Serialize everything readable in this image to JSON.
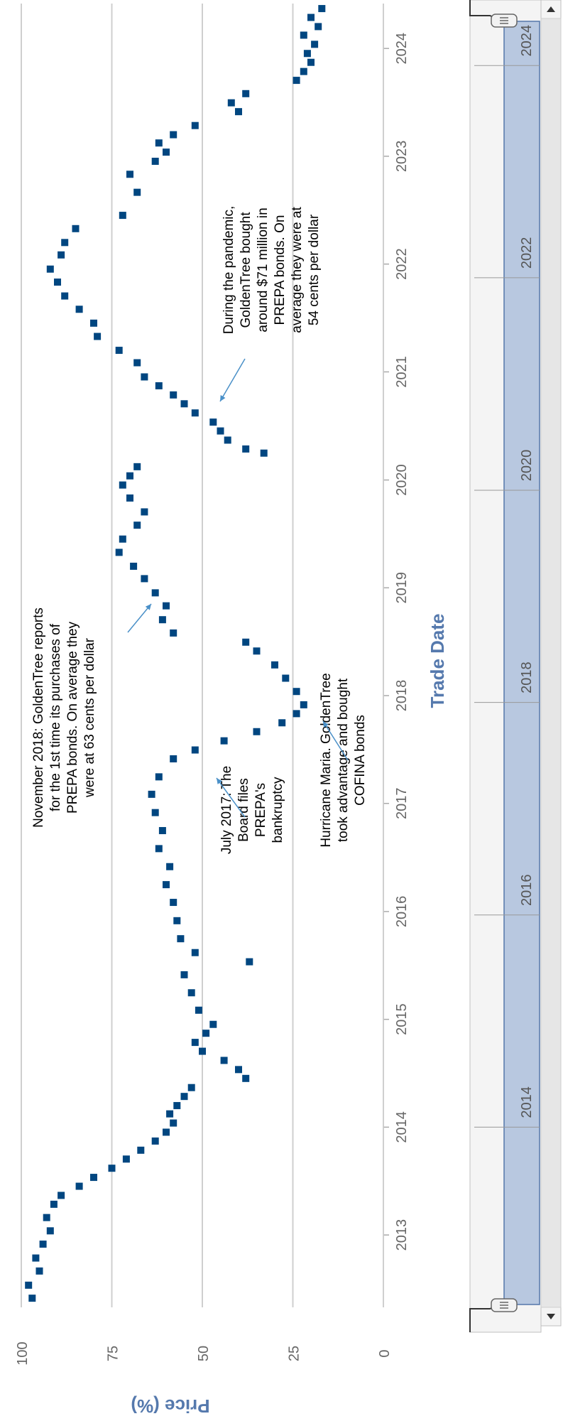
{
  "chart_data": {
    "type": "scatter",
    "orientation": "rotated-90-clockwise",
    "xlabel": "Trade Date",
    "ylabel": "Price (%)",
    "x_ticks": [
      "2013",
      "2014",
      "2015",
      "2016",
      "2017",
      "2018",
      "2019",
      "2020",
      "2021",
      "2022",
      "2023",
      "2024"
    ],
    "y_ticks": [
      "0",
      "25",
      "50",
      "75",
      "100"
    ],
    "ylim": [
      0,
      100
    ],
    "xlim": [
      "2012-05-01",
      "2024-06-01"
    ],
    "grid": true,
    "marker_color": "#004680",
    "series": [
      {
        "points": [
          {
            "x": "2012-06-01",
            "y": 97
          },
          {
            "x": "2012-07-15",
            "y": 98
          },
          {
            "x": "2012-09-01",
            "y": 95
          },
          {
            "x": "2012-10-15",
            "y": 96
          },
          {
            "x": "2012-12-01",
            "y": 94
          },
          {
            "x": "2013-01-15",
            "y": 92
          },
          {
            "x": "2013-03-01",
            "y": 93
          },
          {
            "x": "2013-04-15",
            "y": 91
          },
          {
            "x": "2013-05-15",
            "y": 89
          },
          {
            "x": "2013-06-15",
            "y": 84
          },
          {
            "x": "2013-07-15",
            "y": 80
          },
          {
            "x": "2013-08-15",
            "y": 75
          },
          {
            "x": "2013-09-15",
            "y": 71
          },
          {
            "x": "2013-10-15",
            "y": 67
          },
          {
            "x": "2013-11-15",
            "y": 63
          },
          {
            "x": "2013-12-15",
            "y": 60
          },
          {
            "x": "2014-01-15",
            "y": 58
          },
          {
            "x": "2014-02-15",
            "y": 59
          },
          {
            "x": "2014-03-15",
            "y": 57
          },
          {
            "x": "2014-04-15",
            "y": 55
          },
          {
            "x": "2014-05-15",
            "y": 53
          },
          {
            "x": "2014-06-15",
            "y": 38
          },
          {
            "x": "2014-07-15",
            "y": 40
          },
          {
            "x": "2014-08-15",
            "y": 44
          },
          {
            "x": "2014-09-15",
            "y": 50
          },
          {
            "x": "2014-10-15",
            "y": 52
          },
          {
            "x": "2014-11-15",
            "y": 49
          },
          {
            "x": "2014-12-15",
            "y": 47
          },
          {
            "x": "2015-02-01",
            "y": 51
          },
          {
            "x": "2015-04-01",
            "y": 53
          },
          {
            "x": "2015-06-01",
            "y": 55
          },
          {
            "x": "2015-07-15",
            "y": 37
          },
          {
            "x": "2015-08-15",
            "y": 52
          },
          {
            "x": "2015-10-01",
            "y": 56
          },
          {
            "x": "2015-12-01",
            "y": 57
          },
          {
            "x": "2016-02-01",
            "y": 58
          },
          {
            "x": "2016-04-01",
            "y": 60
          },
          {
            "x": "2016-06-01",
            "y": 59
          },
          {
            "x": "2016-08-01",
            "y": 62
          },
          {
            "x": "2016-10-01",
            "y": 61
          },
          {
            "x": "2016-12-01",
            "y": 63
          },
          {
            "x": "2017-02-01",
            "y": 64
          },
          {
            "x": "2017-04-01",
            "y": 62
          },
          {
            "x": "2017-06-01",
            "y": 58
          },
          {
            "x": "2017-07-01",
            "y": 52
          },
          {
            "x": "2017-08-01",
            "y": 44
          },
          {
            "x": "2017-09-01",
            "y": 35
          },
          {
            "x": "2017-10-01",
            "y": 28
          },
          {
            "x": "2017-11-01",
            "y": 24
          },
          {
            "x": "2017-12-01",
            "y": 22
          },
          {
            "x": "2018-01-15",
            "y": 24
          },
          {
            "x": "2018-03-01",
            "y": 27
          },
          {
            "x": "2018-04-15",
            "y": 30
          },
          {
            "x": "2018-06-01",
            "y": 35
          },
          {
            "x": "2018-07-01",
            "y": 38
          },
          {
            "x": "2018-08-01",
            "y": 58
          },
          {
            "x": "2018-09-15",
            "y": 61
          },
          {
            "x": "2018-11-01",
            "y": 60
          },
          {
            "x": "2018-12-15",
            "y": 63
          },
          {
            "x": "2019-02-01",
            "y": 66
          },
          {
            "x": "2019-03-15",
            "y": 69
          },
          {
            "x": "2019-05-01",
            "y": 73
          },
          {
            "x": "2019-06-15",
            "y": 72
          },
          {
            "x": "2019-08-01",
            "y": 68
          },
          {
            "x": "2019-09-15",
            "y": 66
          },
          {
            "x": "2019-11-01",
            "y": 70
          },
          {
            "x": "2019-12-15",
            "y": 72
          },
          {
            "x": "2020-01-15",
            "y": 70
          },
          {
            "x": "2020-02-15",
            "y": 68
          },
          {
            "x": "2020-04-01",
            "y": 33
          },
          {
            "x": "2020-04-15",
            "y": 38
          },
          {
            "x": "2020-05-15",
            "y": 43
          },
          {
            "x": "2020-06-15",
            "y": 45
          },
          {
            "x": "2020-07-15",
            "y": 47
          },
          {
            "x": "2020-08-15",
            "y": 52
          },
          {
            "x": "2020-09-15",
            "y": 55
          },
          {
            "x": "2020-10-15",
            "y": 58
          },
          {
            "x": "2020-11-15",
            "y": 62
          },
          {
            "x": "2020-12-15",
            "y": 66
          },
          {
            "x": "2021-02-01",
            "y": 68
          },
          {
            "x": "2021-03-15",
            "y": 73
          },
          {
            "x": "2021-05-01",
            "y": 79
          },
          {
            "x": "2021-06-15",
            "y": 80
          },
          {
            "x": "2021-08-01",
            "y": 84
          },
          {
            "x": "2021-09-15",
            "y": 88
          },
          {
            "x": "2021-11-01",
            "y": 90
          },
          {
            "x": "2021-12-15",
            "y": 92
          },
          {
            "x": "2022-02-01",
            "y": 89
          },
          {
            "x": "2022-03-15",
            "y": 88
          },
          {
            "x": "2022-05-01",
            "y": 85
          },
          {
            "x": "2022-06-15",
            "y": 72
          },
          {
            "x": "2022-09-01",
            "y": 68
          },
          {
            "x": "2022-11-01",
            "y": 70
          },
          {
            "x": "2022-12-15",
            "y": 63
          },
          {
            "x": "2023-01-15",
            "y": 60
          },
          {
            "x": "2023-02-15",
            "y": 62
          },
          {
            "x": "2023-03-15",
            "y": 58
          },
          {
            "x": "2023-04-15",
            "y": 52
          },
          {
            "x": "2023-06-01",
            "y": 40
          },
          {
            "x": "2023-07-01",
            "y": 42
          },
          {
            "x": "2023-08-01",
            "y": 38
          },
          {
            "x": "2023-09-15",
            "y": 24
          },
          {
            "x": "2023-10-15",
            "y": 22
          },
          {
            "x": "2023-11-15",
            "y": 20
          },
          {
            "x": "2023-12-15",
            "y": 21
          },
          {
            "x": "2024-01-15",
            "y": 19
          },
          {
            "x": "2024-02-15",
            "y": 22
          },
          {
            "x": "2024-03-15",
            "y": 18
          },
          {
            "x": "2024-04-15",
            "y": 20
          },
          {
            "x": "2024-05-15",
            "y": 17
          }
        ]
      }
    ],
    "annotations": [
      {
        "lines": [
          "November 2018: GoldenTree reports",
          "for the 1st time its purchases of",
          "PREPA bonds. On average they",
          "were at 63 cents per dollar"
        ],
        "x": "2018-11-01",
        "y": 63
      },
      {
        "lines": [
          "July 2017: The",
          "Board files",
          "PREPA's",
          "bankruptcy"
        ],
        "x": "2017-07-01",
        "y": 50
      },
      {
        "lines": [
          "Hurricane Maria. GoldenTree",
          "took advantage and bought",
          "COFINA bonds"
        ],
        "x": "2017-09-20",
        "y": 22
      },
      {
        "lines": [
          "During the pandemic,",
          "GoldenTree bought",
          "around $71 million in",
          "PREPA bonds. On",
          "average they were at",
          "54 cents per dollar"
        ],
        "x": "2020-11-01",
        "y": 54
      }
    ]
  },
  "range_selector": {
    "year_labels": [
      "2014",
      "2016",
      "2018",
      "2020",
      "2022",
      "2024"
    ],
    "handle_icon": "three-bar-grip-icon",
    "top_arrow_icon": "arrow-up-icon",
    "bottom_arrow_icon": "arrow-down-icon"
  }
}
